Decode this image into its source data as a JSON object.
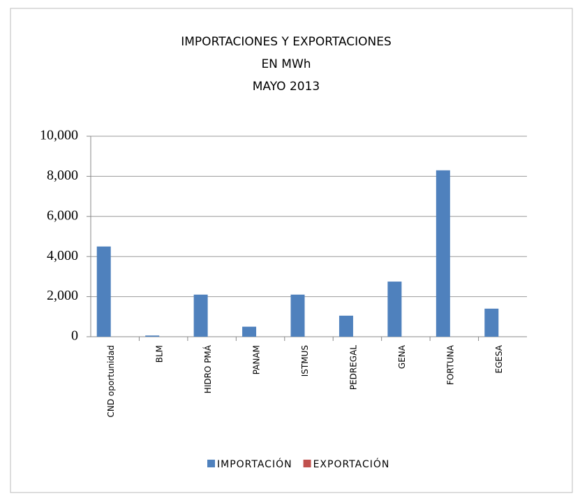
{
  "chart_data": {
    "type": "bar",
    "title": [
      "IMPORTACIONES Y EXPORTACIONES",
      "EN MWh",
      "MAYO 2013"
    ],
    "categories": [
      "CND oportunidad",
      "BLM",
      "HIDRO PMÁ",
      "PANAM",
      "ISTMUS",
      "PEDREGAL",
      "GENA",
      "FORTUNA",
      "EGESA"
    ],
    "series": [
      {
        "name": "IMPORTACIÓN",
        "color": "#4f81bd",
        "values": [
          4500,
          60,
          2100,
          500,
          2100,
          1050,
          2750,
          8300,
          1400
        ]
      },
      {
        "name": "EXPORTACIÓN",
        "color": "#c0504d",
        "values": [
          0,
          0,
          0,
          0,
          0,
          0,
          0,
          0,
          0
        ]
      }
    ],
    "ylim": [
      0,
      10000
    ],
    "yticks": [
      0,
      {
        "value": 2000,
        "label": "2,000"
      },
      {
        "value": 4000,
        "label": "4,000"
      },
      {
        "value": 6000,
        "label": "6,000"
      },
      {
        "value": 8000,
        "label": "8,000"
      },
      {
        "value": 10000,
        "label": "10,000"
      }
    ],
    "grid": true,
    "legend": "bottom"
  }
}
